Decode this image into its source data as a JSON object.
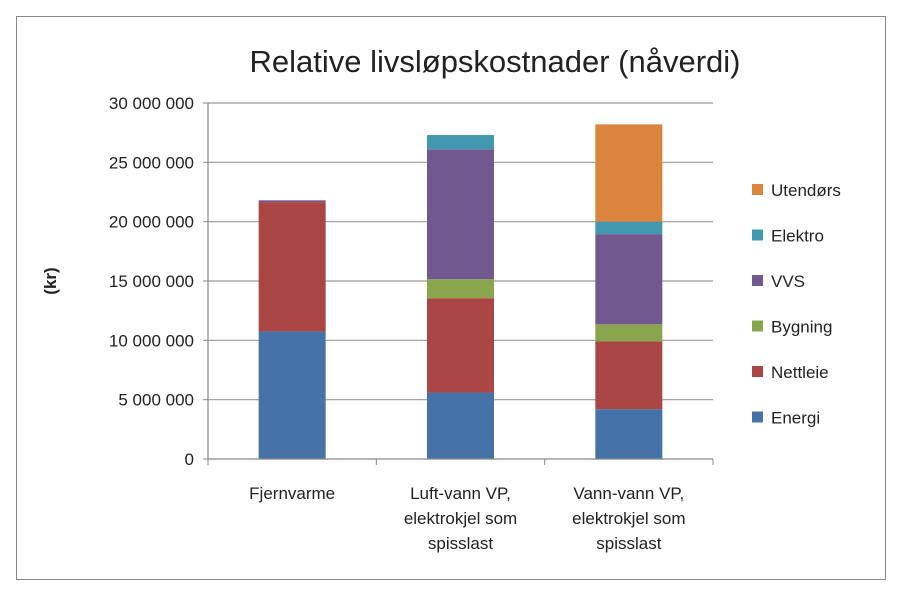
{
  "chart_data": {
    "type": "bar",
    "stacked": true,
    "title": "Relative livsløpskostnader (nåverdi)",
    "xlabel": "",
    "ylabel": "(kr)",
    "ylim": [
      0,
      30000000
    ],
    "yticks": [
      0,
      5000000,
      10000000,
      15000000,
      20000000,
      25000000,
      30000000
    ],
    "ytick_labels": [
      "0",
      "5 000 000",
      "10 000 000",
      "15 000 000",
      "20 000 000",
      "25 000 000",
      "30 000 000"
    ],
    "grid": true,
    "legend_position": "right",
    "categories": [
      [
        "Fjernvarme"
      ],
      [
        "Luft-vann VP,",
        "elektrokjel som",
        "spisslast"
      ],
      [
        "Vann-vann VP,",
        "elektrokjel som",
        "spisslast"
      ]
    ],
    "series": [
      {
        "name": "Energi",
        "color": "#4572a7",
        "values": [
          10750000,
          5600000,
          4200000
        ]
      },
      {
        "name": "Nettleie",
        "color": "#aa4643",
        "values": [
          10900000,
          7950000,
          5700000
        ]
      },
      {
        "name": "Bygning",
        "color": "#89a54e",
        "values": [
          0,
          1600000,
          1450000
        ]
      },
      {
        "name": "VVS",
        "color": "#71588f",
        "values": [
          150000,
          10950000,
          7600000
        ]
      },
      {
        "name": "Elektro",
        "color": "#4198af",
        "values": [
          0,
          1200000,
          1050000
        ]
      },
      {
        "name": "Utendørs",
        "color": "#db843d",
        "values": [
          0,
          0,
          8200000
        ]
      }
    ]
  }
}
